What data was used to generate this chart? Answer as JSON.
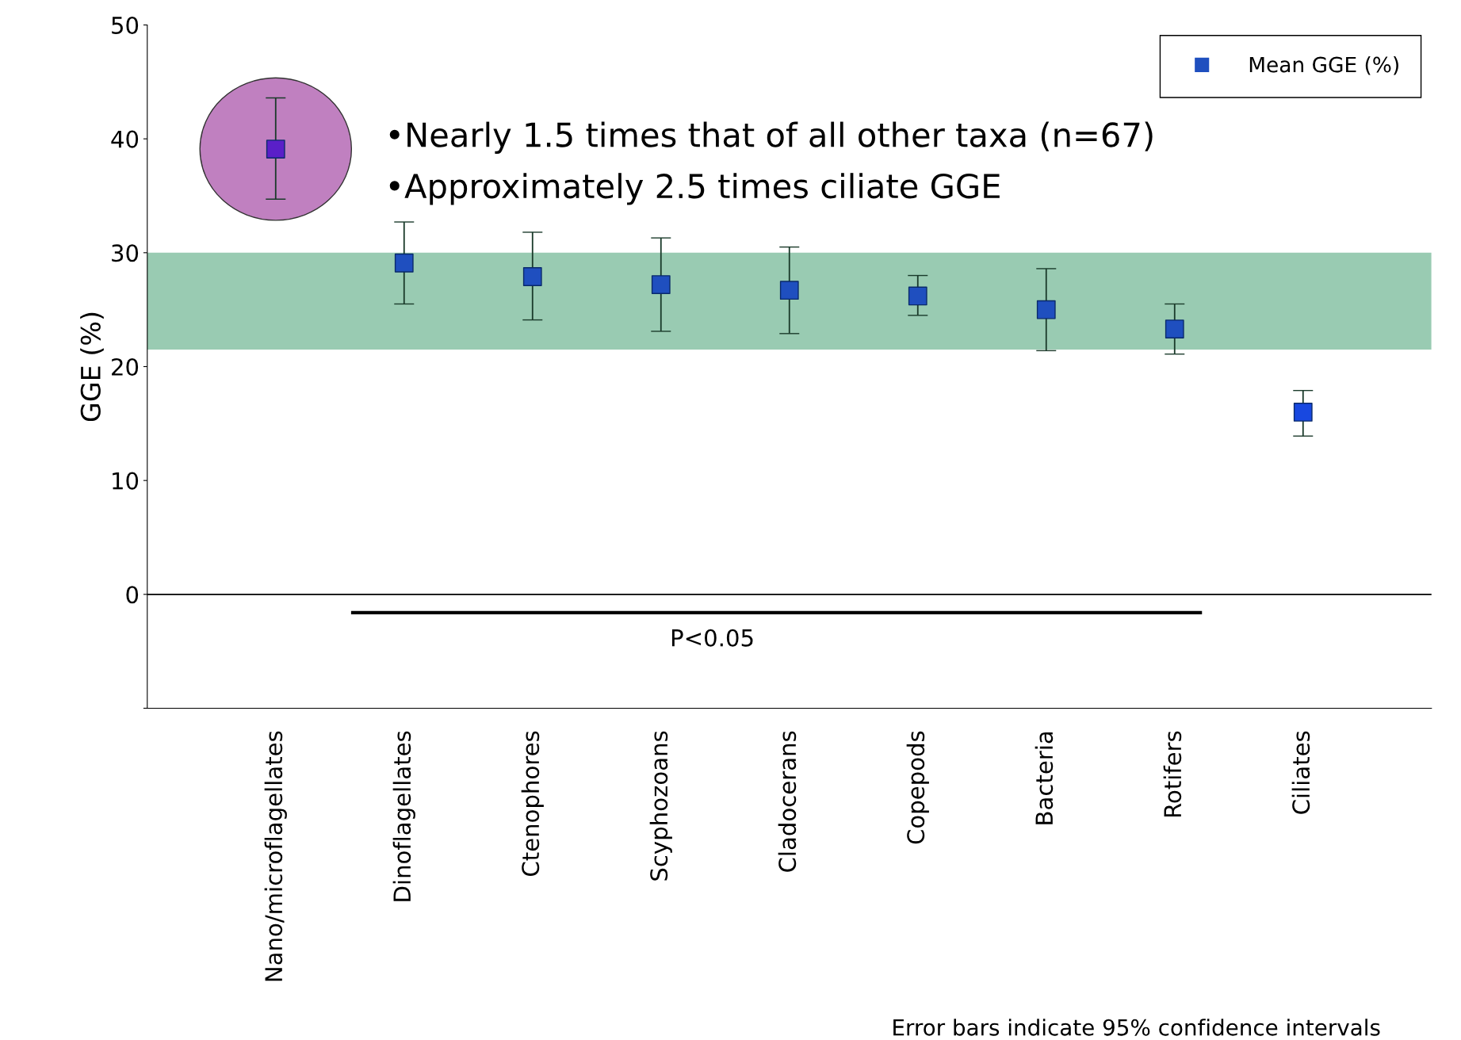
{
  "chart_data": {
    "type": "scatter",
    "ylabel": "GGE (%)",
    "categories": [
      "Nano/microflagellates",
      "Dinoflagellates",
      "Ctenophores",
      "Scyphozoans",
      "Cladocerans",
      "Copepods",
      "Bacteria",
      "Rotifers",
      "Ciliates"
    ],
    "series": [
      {
        "name": "Mean GGE (%)",
        "color": "#1f4fbf",
        "colors": [
          "#5a1fc8",
          "#1f4fbf",
          "#1f4fbf",
          "#1f4fbf",
          "#1f4fbf",
          "#1f4fbf",
          "#1f4fbf",
          "#1f4fbf",
          "#1848e0"
        ],
        "values": [
          39.1,
          29.1,
          27.9,
          27.2,
          26.7,
          26.2,
          25.0,
          23.3,
          16.0
        ],
        "errors": [
          [
            34.7,
            43.6
          ],
          [
            25.5,
            32.7
          ],
          [
            24.1,
            31.8
          ],
          [
            23.1,
            31.3
          ],
          [
            22.9,
            30.5
          ],
          [
            24.5,
            28.0
          ],
          [
            21.4,
            28.6
          ],
          [
            21.1,
            25.5
          ],
          [
            13.9,
            17.9
          ]
        ]
      }
    ],
    "ylim": [
      -10,
      50
    ],
    "yticks": [
      {
        "value": -10,
        "label": null
      },
      0,
      10,
      20,
      30,
      40,
      50
    ],
    "bands": [
      {
        "axis": "y",
        "from": 21.5,
        "to": 30,
        "color": "#99cbb2"
      }
    ],
    "ref_lines": [
      {
        "axis": "y",
        "value": 0,
        "color": "#000000"
      }
    ],
    "annotations": [
      "•Nearly 1.5 times that of all other taxa (n=67)",
      "•Approximately 2.5 times ciliate GGE",
      "P<0.05",
      "Error bars indicate 95% confidence intervals"
    ],
    "marker": "square",
    "legend": "top right",
    "grid": false
  }
}
